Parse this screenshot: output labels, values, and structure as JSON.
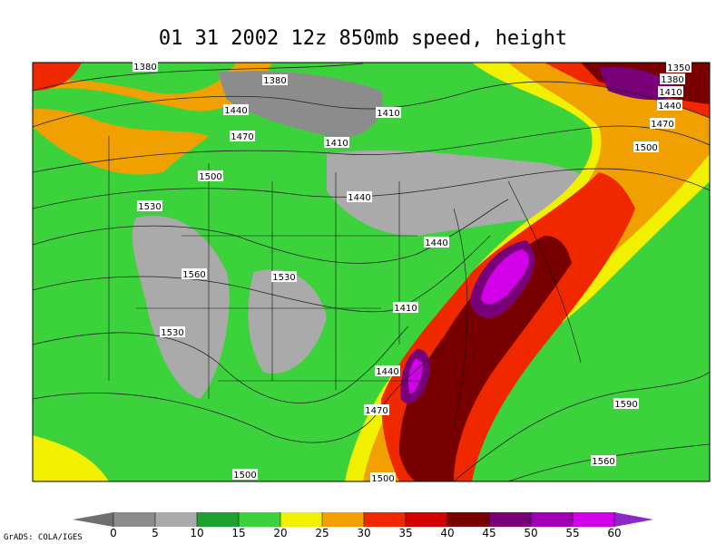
{
  "title": "01 31 2002 12z 850mb speed, height",
  "credit": "GrADS: COLA/IGES",
  "contour_labels": [
    "1380",
    "1380",
    "1440",
    "1410",
    "1470",
    "1410",
    "1500",
    "1440",
    "1530",
    "1440",
    "1560",
    "1530",
    "1410",
    "1530",
    "1440",
    "1470",
    "1590",
    "1560",
    "1500",
    "1500",
    "1350",
    "1380",
    "1410",
    "1440",
    "1470",
    "1500"
  ],
  "colorbar": {
    "levels": [
      0,
      5,
      10,
      15,
      20,
      25,
      30,
      35,
      40,
      45,
      50,
      55,
      60
    ],
    "colors": [
      "#6e6e6e",
      "#8c8c8c",
      "#aaaaaa",
      "#1ea030",
      "#3cd23c",
      "#f0f000",
      "#f0a000",
      "#f02800",
      "#d20000",
      "#780000",
      "#780078",
      "#a000b4",
      "#d200e6",
      "#8c28c8"
    ]
  }
}
